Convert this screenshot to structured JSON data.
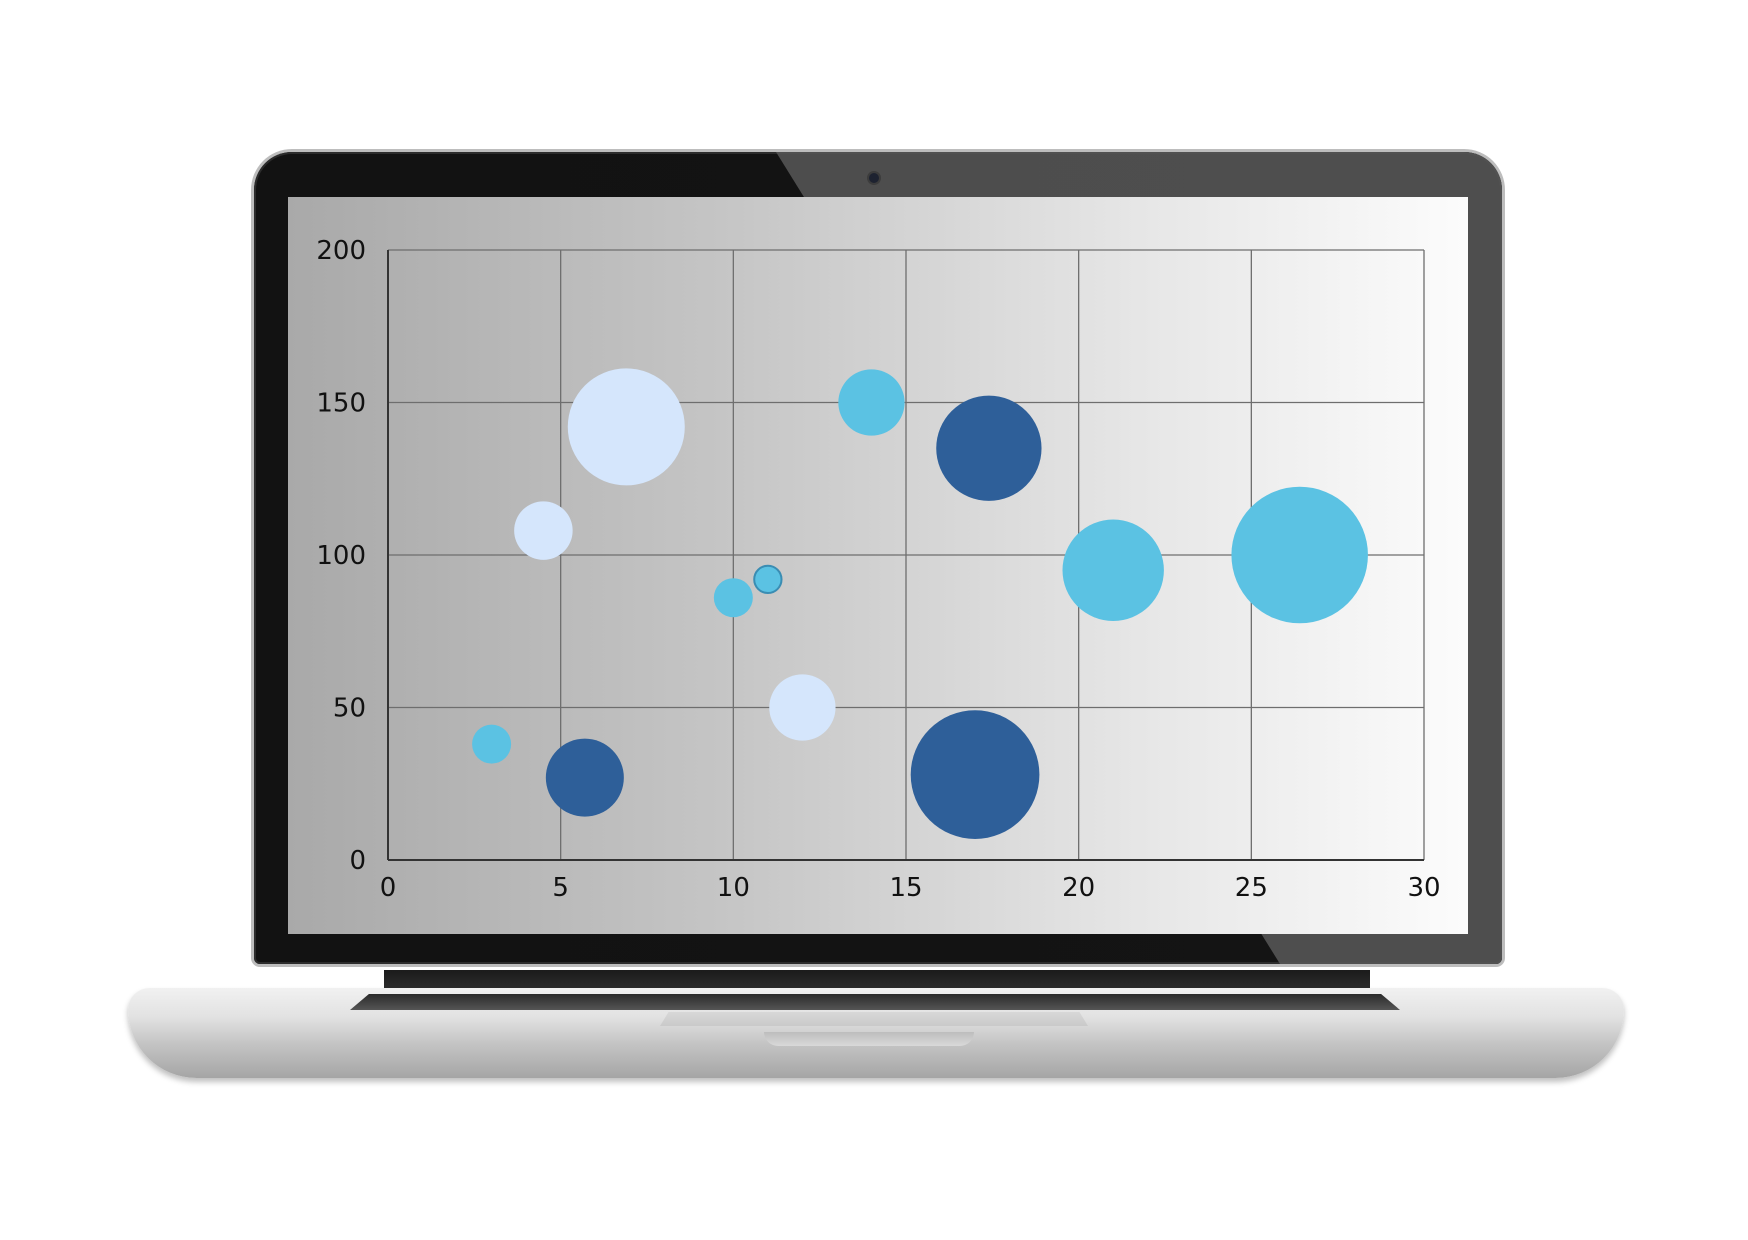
{
  "chart_data": {
    "type": "scatter",
    "title": "",
    "xlabel": "",
    "ylabel": "",
    "xlim": [
      0,
      30
    ],
    "ylim": [
      0,
      200
    ],
    "x_ticks": [
      "0",
      "5",
      "10",
      "15",
      "20",
      "25",
      "30"
    ],
    "y_ticks": [
      "0",
      "50",
      "100",
      "150",
      "200"
    ],
    "grid": true,
    "legend": "none",
    "colors": {
      "light_blue": "#5bc2e3",
      "pale_blue": "#d5e6fc",
      "dark_blue": "#2e5f99"
    },
    "points": [
      {
        "x": 3.0,
        "y": 38,
        "size": 10,
        "color": "light_blue"
      },
      {
        "x": 4.5,
        "y": 108,
        "size": 15,
        "color": "pale_blue"
      },
      {
        "x": 5.7,
        "y": 27,
        "size": 20,
        "color": "dark_blue"
      },
      {
        "x": 6.9,
        "y": 142,
        "size": 30,
        "color": "pale_blue"
      },
      {
        "x": 10.0,
        "y": 86,
        "size": 10,
        "color": "light_blue"
      },
      {
        "x": 11.0,
        "y": 92,
        "size": 7,
        "color": "light_blue"
      },
      {
        "x": 12.0,
        "y": 50,
        "size": 17,
        "color": "pale_blue"
      },
      {
        "x": 14.0,
        "y": 150,
        "size": 17,
        "color": "light_blue"
      },
      {
        "x": 17.0,
        "y": 28,
        "size": 33,
        "color": "dark_blue"
      },
      {
        "x": 17.4,
        "y": 135,
        "size": 27,
        "color": "dark_blue"
      },
      {
        "x": 21.0,
        "y": 95,
        "size": 26,
        "color": "light_blue"
      },
      {
        "x": 26.4,
        "y": 100,
        "size": 35,
        "color": "light_blue"
      }
    ]
  }
}
